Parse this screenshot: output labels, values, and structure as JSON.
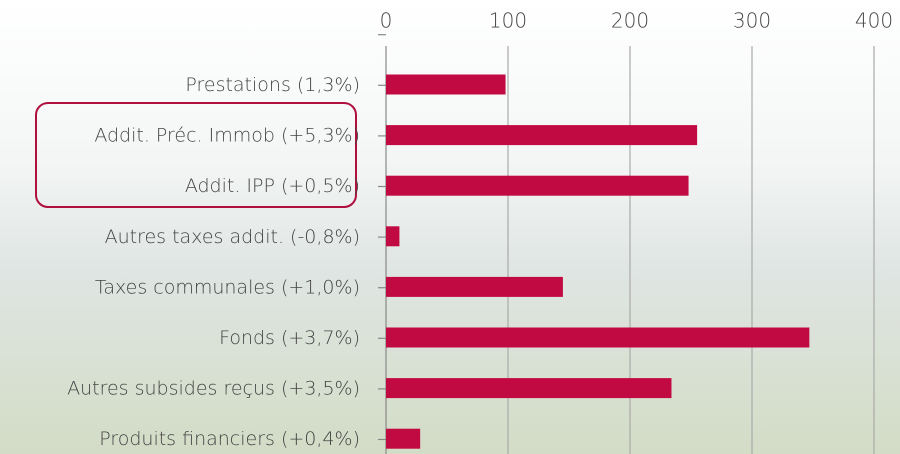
{
  "chart_data": {
    "type": "bar",
    "orientation": "horizontal",
    "categories": [
      "Prestations (1,3%)",
      "Addit. Préc. Immob (+5,3%)",
      "Addit. IPP (+0,5%)",
      "Autres taxes addit. (-0,8%)",
      "Taxes communales (+1,0%)",
      "Fonds (+3,7%)",
      "Autres subsides reçus (+3,5%)",
      "Produits financiers (+0,4%)"
    ],
    "values": [
      98,
      255,
      248,
      11,
      145,
      347,
      234,
      28
    ],
    "color": "#c20a42",
    "xlim": [
      0,
      400
    ],
    "xticks": [
      0,
      100,
      200,
      300,
      400
    ],
    "grid": true
  }
}
